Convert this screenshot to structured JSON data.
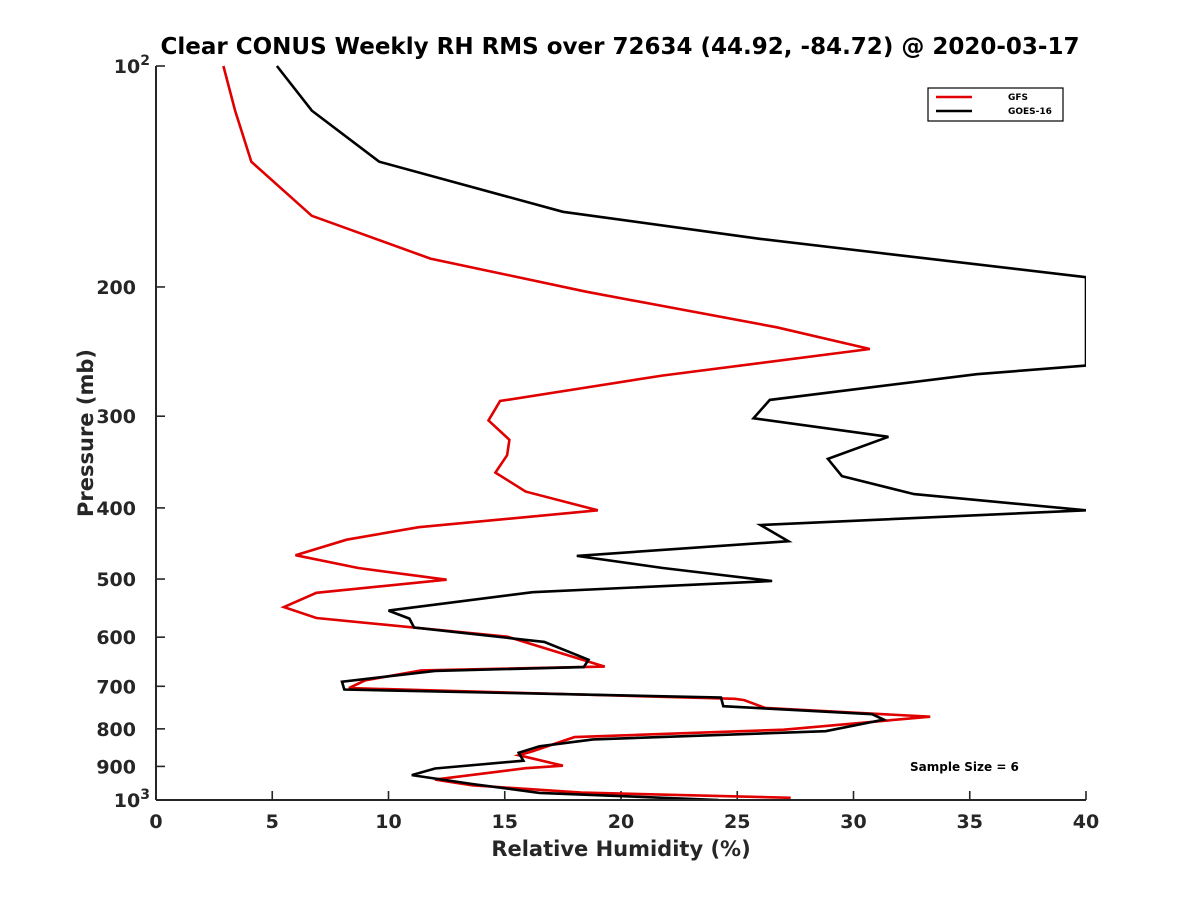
{
  "chart_data": {
    "type": "line",
    "title": "Clear CONUS Weekly RH RMS over 72634 (44.92, -84.72) @ 2020-03-17",
    "xlabel": "Relative Humidity (%)",
    "ylabel": "Pressure (mb)",
    "xlim": [
      0,
      40
    ],
    "ylim": [
      100,
      1000
    ],
    "yscale": "log",
    "y_reversed": true,
    "x_ticks": [
      0,
      5,
      10,
      15,
      20,
      25,
      30,
      35,
      40
    ],
    "y_ticks": [
      {
        "value": 100,
        "label": "10",
        "sup": "2"
      },
      {
        "value": 200,
        "label": "200",
        "sup": ""
      },
      {
        "value": 300,
        "label": "300",
        "sup": ""
      },
      {
        "value": 400,
        "label": "400",
        "sup": ""
      },
      {
        "value": 500,
        "label": "500",
        "sup": ""
      },
      {
        "value": 600,
        "label": "600",
        "sup": ""
      },
      {
        "value": 700,
        "label": "700",
        "sup": ""
      },
      {
        "value": 800,
        "label": "800",
        "sup": ""
      },
      {
        "value": 900,
        "label": "900",
        "sup": ""
      },
      {
        "value": 1000,
        "label": "10",
        "sup": "3"
      }
    ],
    "legend_position": "top-right",
    "annotation": "Sample Size = 6",
    "series": [
      {
        "name": "GFS",
        "color": "#e00000",
        "points": [
          {
            "x": 2.9,
            "p": 100
          },
          {
            "x": 3.4,
            "p": 115
          },
          {
            "x": 4.1,
            "p": 135
          },
          {
            "x": 6.7,
            "p": 160
          },
          {
            "x": 11.8,
            "p": 183
          },
          {
            "x": 18.5,
            "p": 203
          },
          {
            "x": 26.7,
            "p": 227
          },
          {
            "x": 30.7,
            "p": 243
          },
          {
            "x": 21.8,
            "p": 264
          },
          {
            "x": 14.8,
            "p": 286
          },
          {
            "x": 14.3,
            "p": 304
          },
          {
            "x": 15.2,
            "p": 323
          },
          {
            "x": 15.1,
            "p": 339
          },
          {
            "x": 14.6,
            "p": 358
          },
          {
            "x": 15.9,
            "p": 380
          },
          {
            "x": 19.0,
            "p": 403
          },
          {
            "x": 11.3,
            "p": 425
          },
          {
            "x": 8.2,
            "p": 442
          },
          {
            "x": 6.0,
            "p": 464
          },
          {
            "x": 8.7,
            "p": 483
          },
          {
            "x": 12.5,
            "p": 501
          },
          {
            "x": 6.9,
            "p": 522
          },
          {
            "x": 5.5,
            "p": 546
          },
          {
            "x": 6.9,
            "p": 565
          },
          {
            "x": 15.1,
            "p": 599
          },
          {
            "x": 19.3,
            "p": 658
          },
          {
            "x": 11.4,
            "p": 666
          },
          {
            "x": 9.0,
            "p": 687
          },
          {
            "x": 8.3,
            "p": 704
          },
          {
            "x": 24.9,
            "p": 728
          },
          {
            "x": 25.3,
            "p": 731
          },
          {
            "x": 26.2,
            "p": 749
          },
          {
            "x": 33.3,
            "p": 770
          },
          {
            "x": 27.0,
            "p": 802
          },
          {
            "x": 18.0,
            "p": 821
          },
          {
            "x": 16.2,
            "p": 858
          },
          {
            "x": 15.6,
            "p": 869
          },
          {
            "x": 17.5,
            "p": 898
          },
          {
            "x": 15.9,
            "p": 905
          },
          {
            "x": 12.0,
            "p": 938
          },
          {
            "x": 13.6,
            "p": 955
          },
          {
            "x": 18.3,
            "p": 977
          },
          {
            "x": 27.3,
            "p": 993
          }
        ]
      },
      {
        "name": "GOES-16",
        "color": "#000000",
        "points": [
          {
            "x": 5.2,
            "p": 100
          },
          {
            "x": 6.7,
            "p": 115
          },
          {
            "x": 9.6,
            "p": 135
          },
          {
            "x": 17.5,
            "p": 158
          },
          {
            "x": 26.0,
            "p": 172
          },
          {
            "x": 40.0,
            "p": 194
          },
          {
            "x": 40.0,
            "p": 256
          },
          {
            "x": 35.3,
            "p": 263
          },
          {
            "x": 26.4,
            "p": 285
          },
          {
            "x": 25.7,
            "p": 302
          },
          {
            "x": 31.5,
            "p": 320
          },
          {
            "x": 28.9,
            "p": 343
          },
          {
            "x": 29.5,
            "p": 362
          },
          {
            "x": 32.6,
            "p": 383
          },
          {
            "x": 40.0,
            "p": 403
          },
          {
            "x": 26.0,
            "p": 422
          },
          {
            "x": 27.2,
            "p": 444
          },
          {
            "x": 18.1,
            "p": 465
          },
          {
            "x": 21.8,
            "p": 483
          },
          {
            "x": 26.5,
            "p": 503
          },
          {
            "x": 16.2,
            "p": 521
          },
          {
            "x": 10.0,
            "p": 552
          },
          {
            "x": 10.9,
            "p": 566
          },
          {
            "x": 11.1,
            "p": 582
          },
          {
            "x": 16.7,
            "p": 609
          },
          {
            "x": 18.6,
            "p": 644
          },
          {
            "x": 18.4,
            "p": 659
          },
          {
            "x": 12.0,
            "p": 667
          },
          {
            "x": 8.0,
            "p": 690
          },
          {
            "x": 8.1,
            "p": 707
          },
          {
            "x": 24.3,
            "p": 725
          },
          {
            "x": 24.4,
            "p": 745
          },
          {
            "x": 30.8,
            "p": 764
          },
          {
            "x": 31.3,
            "p": 777
          },
          {
            "x": 28.8,
            "p": 806
          },
          {
            "x": 18.8,
            "p": 827
          },
          {
            "x": 16.5,
            "p": 845
          },
          {
            "x": 15.6,
            "p": 862
          },
          {
            "x": 15.8,
            "p": 884
          },
          {
            "x": 12.0,
            "p": 906
          },
          {
            "x": 11.0,
            "p": 925
          },
          {
            "x": 13.6,
            "p": 951
          },
          {
            "x": 16.5,
            "p": 978
          },
          {
            "x": 24.2,
            "p": 1000
          }
        ]
      }
    ]
  }
}
